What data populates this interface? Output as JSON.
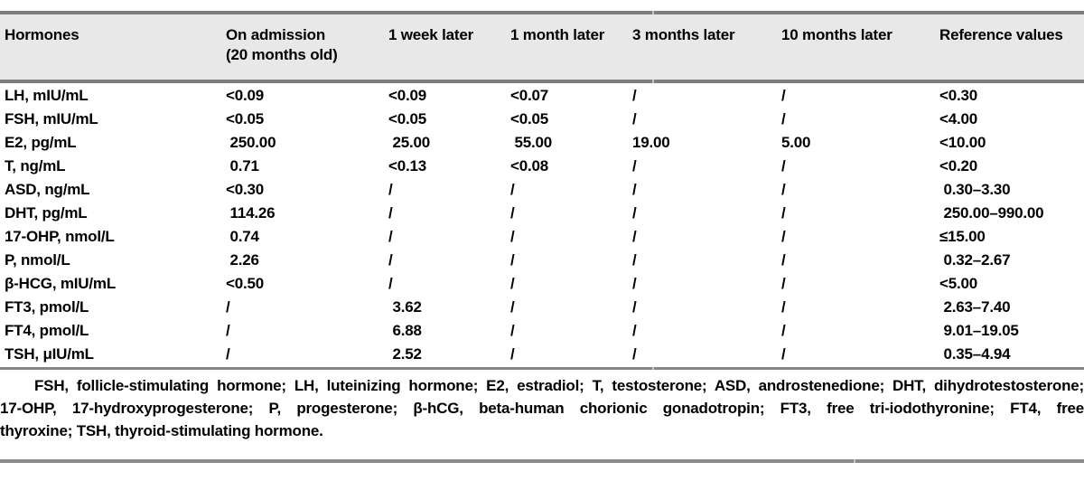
{
  "colors": {
    "background": "#ffffff",
    "header_background": "#e8e8e8",
    "rule": "#7d7d7d",
    "text": "#000000"
  },
  "table": {
    "columns": [
      {
        "label": "Hormones",
        "sublabel": ""
      },
      {
        "label": "On admission",
        "sublabel": "(20 months old)"
      },
      {
        "label": "1 week later",
        "sublabel": ""
      },
      {
        "label": "1 month later",
        "sublabel": ""
      },
      {
        "label": "3 months later",
        "sublabel": ""
      },
      {
        "label": "10 months later",
        "sublabel": ""
      },
      {
        "label": "Reference values",
        "sublabel": ""
      }
    ],
    "rows": [
      {
        "hormone": "LH, mIU/mL",
        "values": [
          "<0.09",
          "<0.09",
          "<0.07",
          "/",
          "/",
          "<0.30"
        ]
      },
      {
        "hormone": "FSH, mIU/mL",
        "values": [
          "<0.05",
          "<0.05",
          "<0.05",
          "/",
          "/",
          "<4.00"
        ]
      },
      {
        "hormone": "E2, pg/mL",
        "values": [
          " 250.00",
          " 25.00",
          " 55.00",
          "19.00",
          "5.00",
          "<10.00"
        ]
      },
      {
        "hormone": "T, ng/mL",
        "values": [
          " 0.71",
          "<0.13",
          "<0.08",
          "/",
          "/",
          "<0.20"
        ]
      },
      {
        "hormone": "ASD, ng/mL",
        "values": [
          "<0.30",
          "/",
          "/",
          "/",
          "/",
          " 0.30–3.30"
        ]
      },
      {
        "hormone": "DHT, pg/mL",
        "values": [
          " 114.26",
          "/",
          "/",
          "/",
          "/",
          " 250.00–990.00"
        ]
      },
      {
        "hormone": "17-OHP, nmol/L",
        "values": [
          " 0.74",
          "/",
          "/",
          "/",
          "/",
          "≤15.00"
        ]
      },
      {
        "hormone": "P, nmol/L",
        "values": [
          " 2.26",
          "/",
          "/",
          "/",
          "/",
          " 0.32–2.67"
        ]
      },
      {
        "hormone": "β-HCG, mIU/mL",
        "values": [
          "<0.50",
          "/",
          "/",
          "/",
          "/",
          "<5.00"
        ]
      },
      {
        "hormone": "FT3, pmol/L",
        "values": [
          "/",
          " 3.62",
          "/",
          "/",
          "/",
          " 2.63–7.40"
        ]
      },
      {
        "hormone": "FT4, pmol/L",
        "values": [
          "/",
          " 6.88",
          "/",
          "/",
          "/",
          " 9.01–19.05"
        ]
      },
      {
        "hormone": "TSH, μIU/mL",
        "values": [
          "/",
          " 2.52",
          "/",
          "/",
          "/",
          " 0.35–4.94"
        ]
      }
    ]
  },
  "footnote": {
    "lines": [
      "FSH, follicle-stimulating hormone; LH, luteinizing hormone; E2, estradiol; T, testosterone; ASD, androstenedione; DHT, dihydrotestosterone;",
      "17-OHP, 17-hydroxyprogesterone; P, progesterone; β-hCG, beta-human chorionic gonadotropin; FT3, free tri-iodothyronine; FT4, free",
      "thyroxine; TSH, thyroid-stimulating hormone."
    ]
  }
}
